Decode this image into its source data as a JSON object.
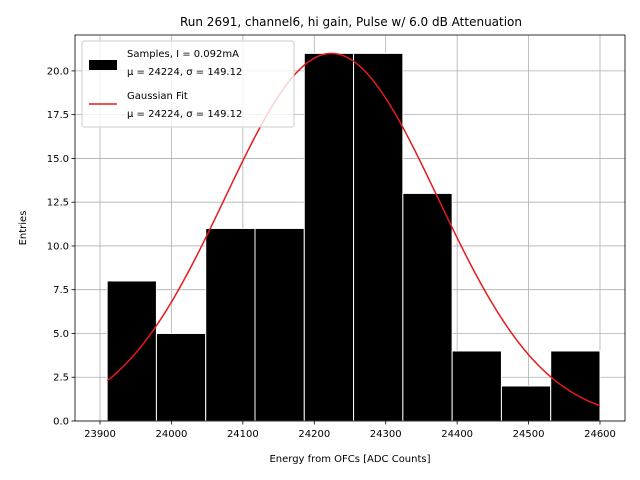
{
  "chart_data": {
    "type": "bar",
    "title": "Run 2691, channel6, hi gain, Pulse w/ 6.0 dB Attenuation",
    "xlabel": "Energy from OFCs [ADC Counts]",
    "ylabel": "Entries",
    "xlim": [
      23865,
      24635
    ],
    "ylim": [
      0,
      22.05
    ],
    "x_ticks": [
      23900,
      24000,
      24100,
      24200,
      24300,
      24400,
      24500,
      24600
    ],
    "y_ticks": [
      0.0,
      2.5,
      5.0,
      7.5,
      10.0,
      12.5,
      15.0,
      17.5,
      20.0
    ],
    "grid": true,
    "legend_position": "top-left",
    "bins": [
      {
        "start": 23910,
        "end": 23979,
        "count": 8
      },
      {
        "start": 23979,
        "end": 24048,
        "count": 5
      },
      {
        "start": 24048,
        "end": 24117,
        "count": 11
      },
      {
        "start": 24117,
        "end": 24186,
        "count": 11
      },
      {
        "start": 24186,
        "end": 24255,
        "count": 21
      },
      {
        "start": 24255,
        "end": 24324,
        "count": 21
      },
      {
        "start": 24324,
        "end": 24393,
        "count": 13
      },
      {
        "start": 24393,
        "end": 24462,
        "count": 4
      },
      {
        "start": 24462,
        "end": 24531,
        "count": 2
      },
      {
        "start": 24531,
        "end": 24600,
        "count": 4
      }
    ],
    "fit": {
      "mu": 24224,
      "sigma": 149.12,
      "amplitude": 21,
      "x_range": [
        23910,
        24600
      ]
    },
    "series": [
      {
        "name": "Samples, I = 0.092mA",
        "stats": "μ = 24224, σ = 149.12",
        "color": "#000000"
      },
      {
        "name": "Gaussian Fit",
        "stats": "μ = 24224, σ = 149.12",
        "color": "#e41a1c"
      }
    ]
  }
}
